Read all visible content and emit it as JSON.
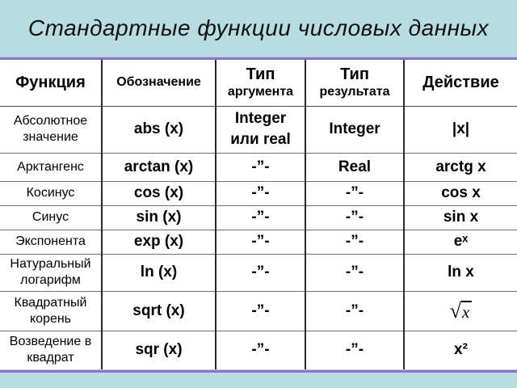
{
  "slide": {
    "title": "Стандартные функции числовых данных",
    "colors": {
      "background": "#b8dce2",
      "divider_purple": "#8478cb",
      "table_background": "#ffffff",
      "text": "#000000",
      "grid_vertical": "#2b2b2b",
      "grid_horizontal": "#6f6f6f"
    }
  },
  "table": {
    "headers": [
      {
        "main": "Функция"
      },
      {
        "main": "Обозначение"
      },
      {
        "main": "Тип",
        "sub": "аргумента"
      },
      {
        "main": "Тип",
        "sub": "результата"
      },
      {
        "main": "Действие"
      }
    ],
    "ditto_mark": "-”-",
    "rows": [
      {
        "function": "Абсолютное значение",
        "notation": "abs (x)",
        "arg_type_line1": "Integer",
        "arg_type_line2": "или real",
        "result_type": "Integer",
        "action": "|x|"
      },
      {
        "function": "Арктангенс",
        "notation": "arctan (x)",
        "arg_type": "-”-",
        "result_type": "Real",
        "action": "arctg x"
      },
      {
        "function": "Косинус",
        "notation": "cos (x)",
        "arg_type": "-”-",
        "result_type": "-”-",
        "action": "cos x"
      },
      {
        "function": "Синус",
        "notation": "sin (x)",
        "arg_type": "-”-",
        "result_type": "-”-",
        "action": "sin x"
      },
      {
        "function": "Экспонента",
        "notation": "exp (x)",
        "arg_type": "-”-",
        "result_type": "-”-",
        "action": "eˣ"
      },
      {
        "function": "Натуральный логарифм",
        "notation": "ln (x)",
        "arg_type": "-”-",
        "result_type": "-”-",
        "action": "ln x"
      },
      {
        "function": "Квадратный корень",
        "notation": "sqrt (x)",
        "arg_type": "-”-",
        "result_type": "-”-",
        "action_radical": "√",
        "action_radicand": "x"
      },
      {
        "function": "Возведение в квадрат",
        "notation": "sqr (x)",
        "arg_type": "-”-",
        "result_type": "-”-",
        "action": "x²"
      }
    ]
  }
}
